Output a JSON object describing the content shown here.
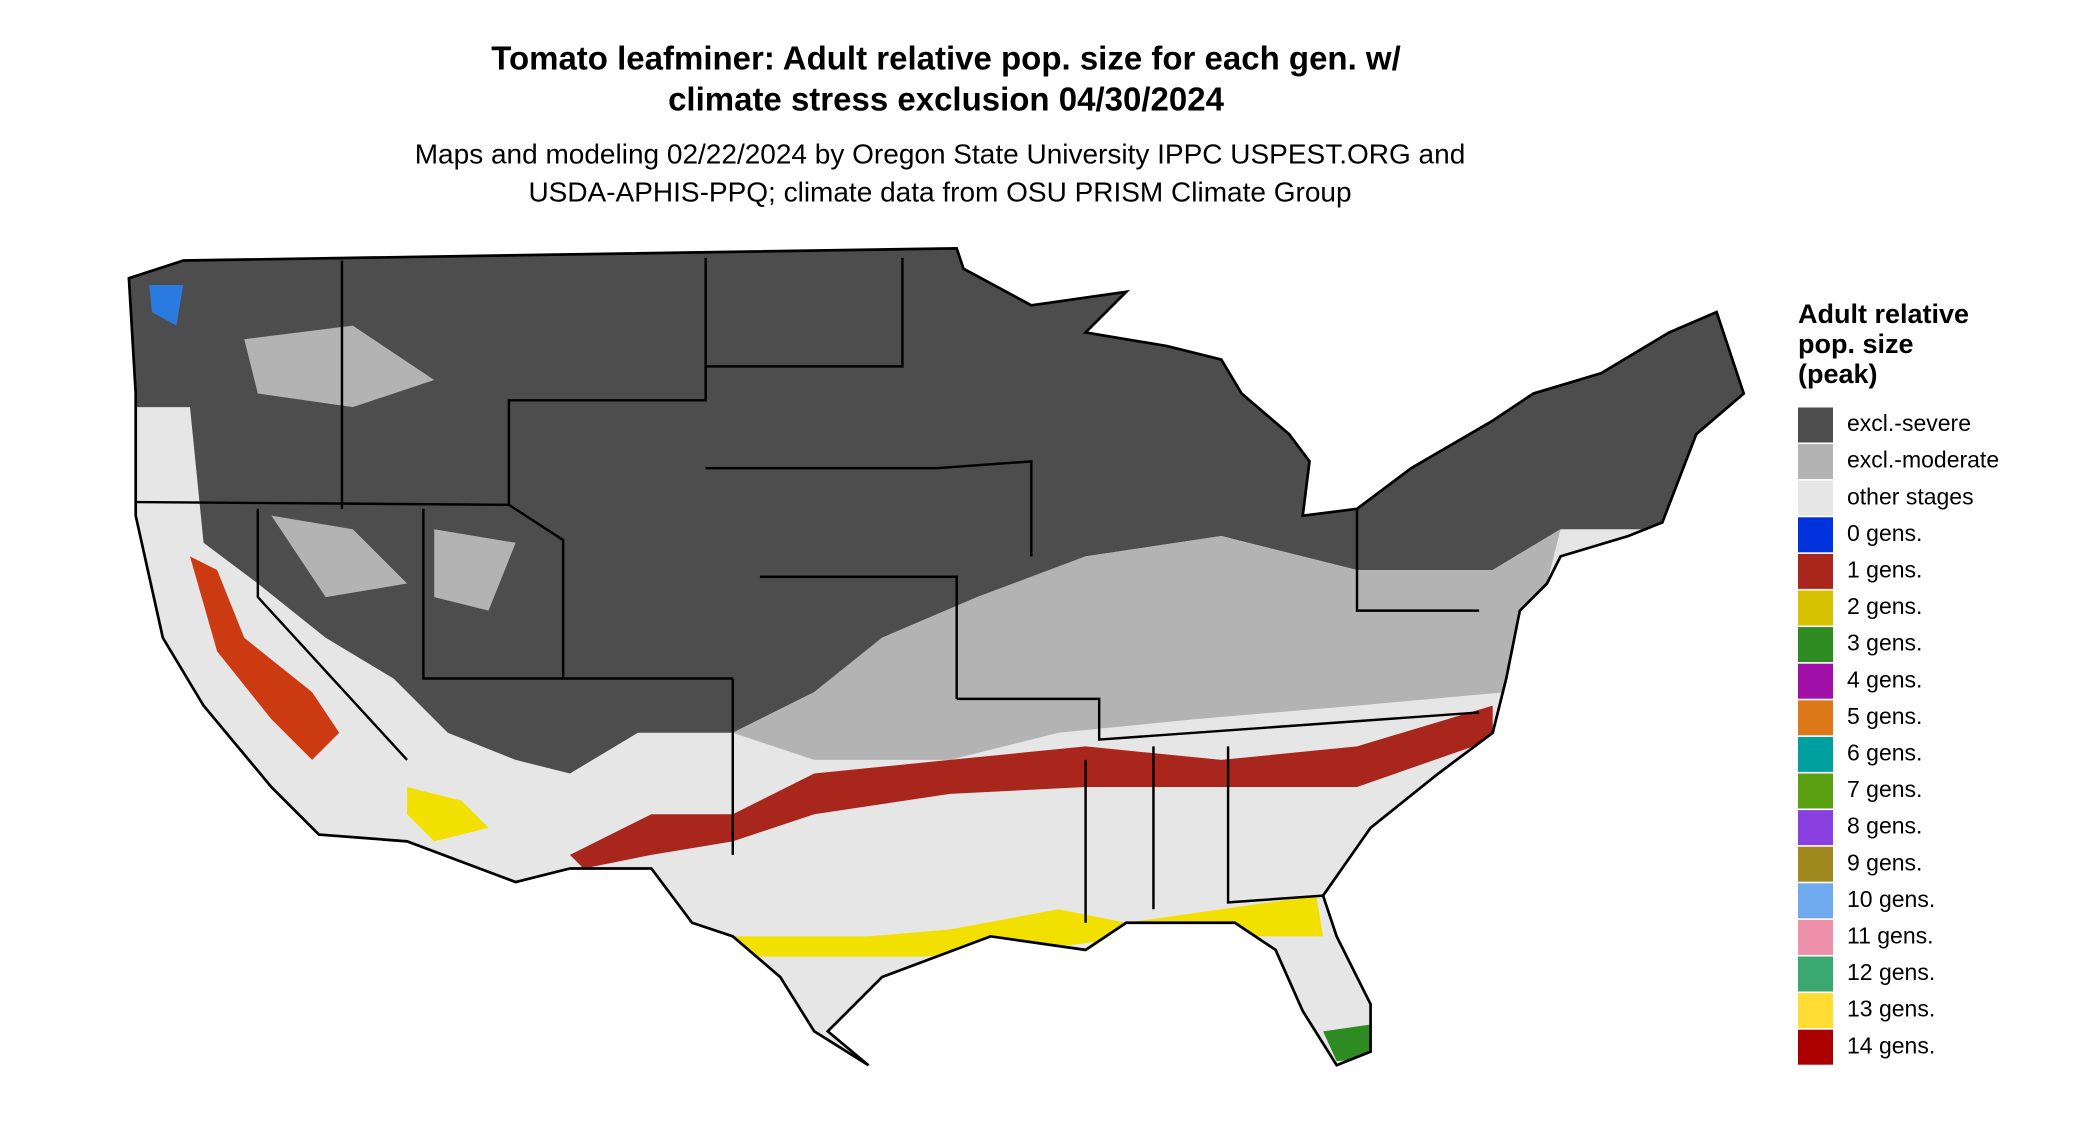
{
  "header": {
    "title_lines": [
      "Tomato leafminer: Adult relative pop. size for each gen. w/",
      "climate stress exclusion 04/30/2024"
    ],
    "subtitle_lines": [
      "Maps and modeling 02/22/2024 by Oregon State University IPPC USPEST.ORG and",
      "USDA-APHIS-PPQ; climate data from OSU PRISM Climate Group"
    ]
  },
  "legend": {
    "title_lines": [
      "Adult relative",
      "pop. size",
      "(peak)"
    ],
    "items": [
      {
        "label": "excl.-severe",
        "color": "#4d4d4d"
      },
      {
        "label": "excl.-moderate",
        "color": "#b3b3b3"
      },
      {
        "label": "other stages",
        "color": "#e6e6e6"
      },
      {
        "label": "0 gens.",
        "color": "#0033dd"
      },
      {
        "label": "1 gens.",
        "color": "#a8261b"
      },
      {
        "label": "2 gens.",
        "color": "#d6c200"
      },
      {
        "label": "3 gens.",
        "color": "#2e8b22"
      },
      {
        "label": "4 gens.",
        "color": "#a010a8"
      },
      {
        "label": "5 gens.",
        "color": "#dc7a1a"
      },
      {
        "label": "6 gens.",
        "color": "#00a0a0"
      },
      {
        "label": "7 gens.",
        "color": "#5aa010"
      },
      {
        "label": "8 gens.",
        "color": "#8a40e0"
      },
      {
        "label": "9 gens.",
        "color": "#a08a20"
      },
      {
        "label": "10 gens.",
        "color": "#70aaee"
      },
      {
        "label": "11 gens.",
        "color": "#ee90aa"
      },
      {
        "label": "12 gens.",
        "color": "#3aa870"
      },
      {
        "label": "13 gens.",
        "color": "#ffdd33"
      },
      {
        "label": "14 gens.",
        "color": "#aa0000"
      }
    ]
  }
}
